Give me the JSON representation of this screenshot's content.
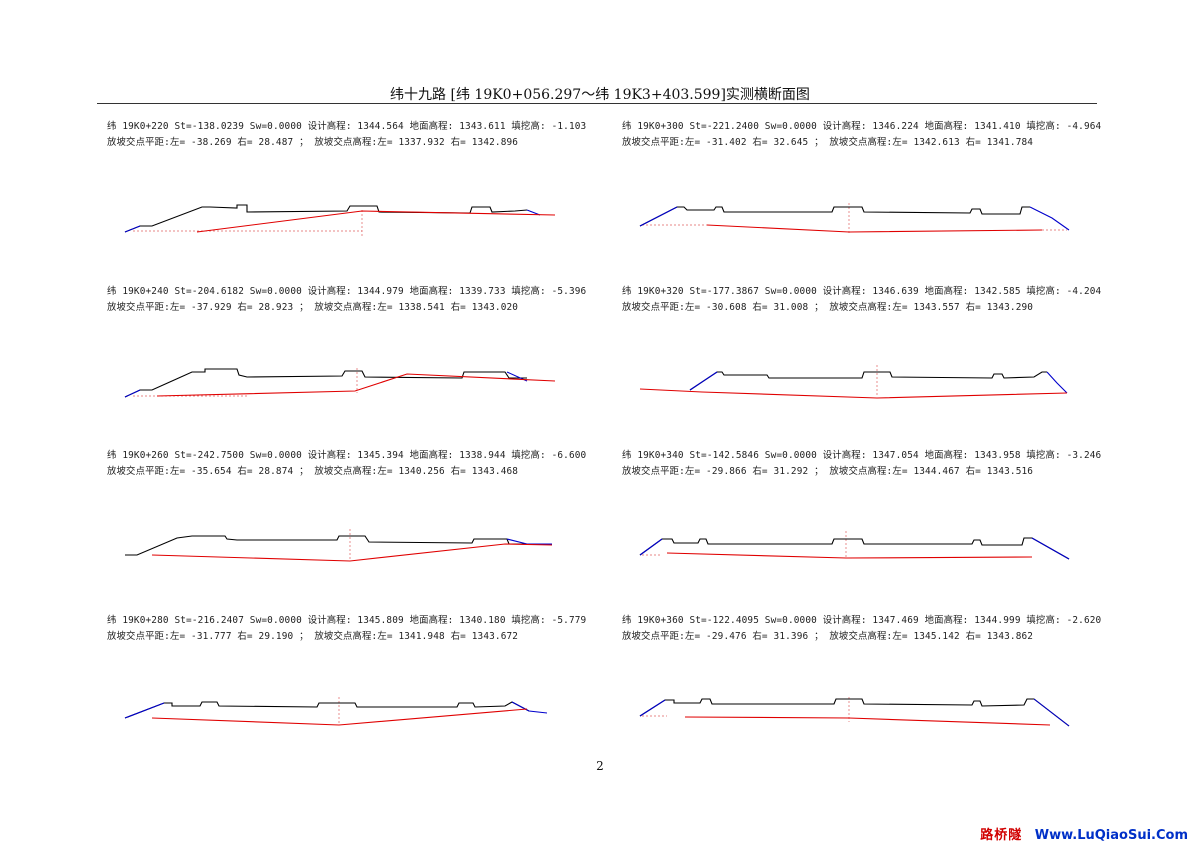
{
  "title": "纬十九路  [纬 19K0+056.297～纬 19K3+403.599]实测横断面图",
  "page_number": "2",
  "watermark": {
    "cn": "路桥隧",
    "url": "Www.LuQiaoSui.Com",
    "cn_color": "#d10000",
    "url_color": "#0030c8"
  },
  "colors": {
    "design": "#000000",
    "ground": "#e00000",
    "slope": "#0000cc",
    "centerline": "#e06060"
  },
  "sections": [
    {
      "id": "k0220",
      "line1": "纬 19K0+220 St=-138.0239 Sw=0.0000 设计高程: 1344.564 地面高程: 1343.611 填挖高: -1.103",
      "line2": "放坡交点平距:左= -38.269 右= 28.487 ； 放坡交点高程:左= 1337.932 右= 1342.896"
    },
    {
      "id": "k0300",
      "line1": "纬 19K0+300 St=-221.2400 Sw=0.0000 设计高程: 1346.224 地面高程: 1341.410 填挖高: -4.964",
      "line2": "放坡交点平距:左= -31.402 右= 32.645 ； 放坡交点高程:左= 1342.613 右= 1341.784"
    },
    {
      "id": "k0240",
      "line1": "纬 19K0+240 St=-204.6182 Sw=0.0000 设计高程: 1344.979 地面高程: 1339.733 填挖高: -5.396",
      "line2": "放坡交点平距:左= -37.929 右= 28.923 ； 放坡交点高程:左= 1338.541 右= 1343.020"
    },
    {
      "id": "k0320",
      "line1": "纬 19K0+320 St=-177.3867 Sw=0.0000 设计高程: 1346.639 地面高程: 1342.585 填挖高: -4.204",
      "line2": "放坡交点平距:左= -30.608 右= 31.008 ； 放坡交点高程:左= 1343.557 右= 1343.290"
    },
    {
      "id": "k0260",
      "line1": "纬 19K0+260 St=-242.7500 Sw=0.0000 设计高程: 1345.394 地面高程: 1338.944 填挖高: -6.600",
      "line2": "放坡交点平距:左= -35.654 右= 28.874 ； 放坡交点高程:左= 1340.256 右= 1343.468"
    },
    {
      "id": "k0340",
      "line1": "纬 19K0+340 St=-142.5846 Sw=0.0000 设计高程: 1347.054 地面高程: 1343.958 填挖高: -3.246",
      "line2": "放坡交点平距:左= -29.866 右= 31.292 ； 放坡交点高程:左= 1344.467 右= 1343.516"
    },
    {
      "id": "k0280",
      "line1": "纬 19K0+280 St=-216.2407 Sw=0.0000 设计高程: 1345.809 地面高程: 1340.180 填挖高: -5.779",
      "line2": "放坡交点平距:左= -31.777 右= 29.190 ； 放坡交点高程:左= 1341.948 右= 1343.672"
    },
    {
      "id": "k0360",
      "line1": "纬 19K0+360 St=-122.4095 Sw=0.0000 设计高程: 1347.469 地面高程: 1344.999 填挖高: -2.620",
      "line2": "放坡交点平距:左= -29.476 右= 31.396 ； 放坡交点高程:左= 1345.142 右= 1343.862"
    }
  ]
}
